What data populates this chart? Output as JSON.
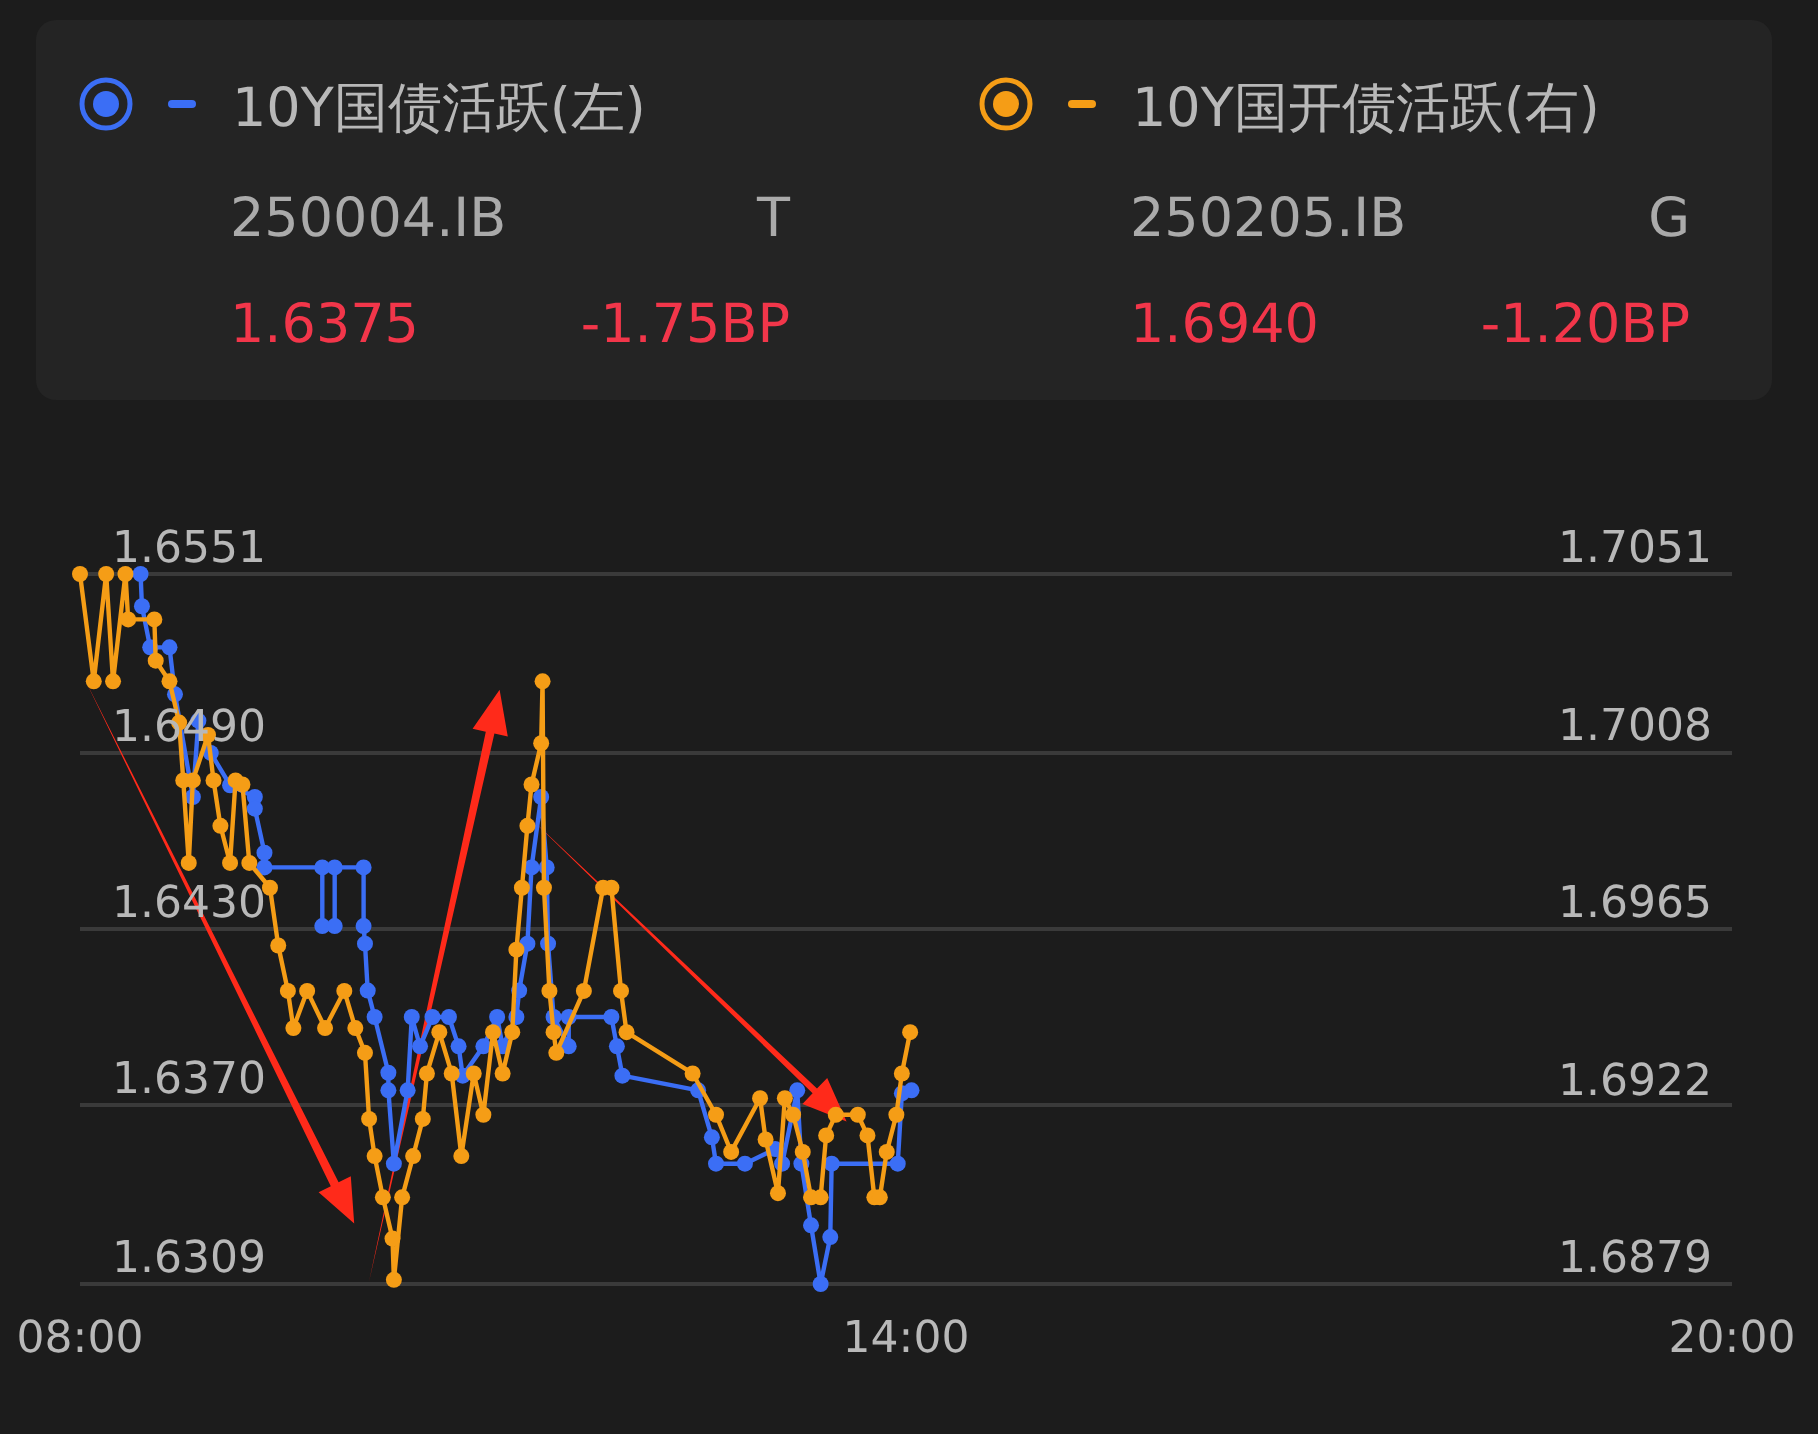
{
  "chart_data": {
    "type": "line",
    "series": [
      {
        "name": "10Y国债活跃(左)",
        "color": "#3b6ef5",
        "axis": "y",
        "x": [
          8.44,
          8.45,
          8.51,
          8.65,
          8.69,
          8.82,
          8.86,
          8.95,
          9.09,
          9.27,
          9.27,
          9.34,
          9.34,
          9.76,
          9.76,
          9.85,
          9.85,
          10.06,
          10.06,
          10.07,
          10.09,
          10.14,
          10.24,
          10.24,
          10.28,
          10.38,
          10.41,
          10.47,
          10.56,
          10.68,
          10.75,
          10.78,
          10.93,
          11.03,
          11.07,
          11.17,
          11.19,
          11.25,
          11.28,
          11.35,
          11.39,
          11.4,
          11.44,
          11.55,
          11.55,
          11.86,
          11.9,
          11.94,
          12.49,
          12.59,
          12.62,
          12.83,
          13.05,
          13.1,
          13.21,
          13.24,
          13.31,
          13.38,
          13.45,
          13.46,
          13.94,
          13.97,
          14.04
        ],
        "values": [
          1.6551,
          1.654,
          1.6526,
          1.6526,
          1.651,
          1.6475,
          1.6501,
          1.649,
          1.6479,
          1.6475,
          1.6471,
          1.6456,
          1.6451,
          1.6451,
          1.6431,
          1.6431,
          1.6451,
          1.6451,
          1.6431,
          1.6425,
          1.6409,
          1.64,
          1.6381,
          1.6375,
          1.635,
          1.6375,
          1.64,
          1.639,
          1.64,
          1.64,
          1.639,
          1.638,
          1.639,
          1.64,
          1.639,
          1.64,
          1.6409,
          1.6425,
          1.6451,
          1.6475,
          1.6451,
          1.6425,
          1.64,
          1.639,
          1.64,
          1.64,
          1.639,
          1.638,
          1.6375,
          1.6359,
          1.635,
          1.635,
          1.6355,
          1.635,
          1.6375,
          1.635,
          1.6329,
          1.6309,
          1.6325,
          1.635,
          1.635,
          1.6374,
          1.6375
        ]
      },
      {
        "name": "10Y国开债活跃(右)",
        "color": "#f59d16",
        "axis": "y2",
        "x": [
          8.0,
          8.1,
          8.19,
          8.24,
          8.33,
          8.35,
          8.54,
          8.55,
          8.65,
          8.72,
          8.75,
          8.79,
          8.82,
          8.93,
          8.97,
          9.02,
          9.09,
          9.13,
          9.18,
          9.23,
          9.38,
          9.44,
          9.51,
          9.55,
          9.65,
          9.78,
          9.92,
          10.0,
          10.07,
          10.1,
          10.14,
          10.2,
          10.27,
          10.28,
          10.34,
          10.42,
          10.49,
          10.52,
          10.61,
          10.7,
          10.77,
          10.86,
          10.93,
          11.0,
          11.07,
          11.14,
          11.17,
          11.21,
          11.25,
          11.28,
          11.35,
          11.36,
          11.37,
          11.41,
          11.44,
          11.46,
          11.66,
          11.8,
          11.86,
          11.93,
          11.97,
          12.45,
          12.62,
          12.73,
          12.94,
          12.98,
          13.07,
          13.12,
          13.18,
          13.25,
          13.31,
          13.38,
          13.42,
          13.49,
          13.65,
          13.72,
          13.77,
          13.81,
          13.86,
          13.93,
          13.97,
          14.03
        ],
        "values": [
          1.7051,
          1.7025,
          1.7051,
          1.7025,
          1.7051,
          1.704,
          1.704,
          1.703,
          1.7025,
          1.7015,
          1.7001,
          1.6981,
          1.7001,
          1.7012,
          1.7001,
          1.699,
          1.6981,
          1.7001,
          1.7,
          1.6981,
          1.6975,
          1.6961,
          1.695,
          1.6941,
          1.695,
          1.6941,
          1.695,
          1.6941,
          1.6935,
          1.6919,
          1.691,
          1.69,
          1.689,
          1.688,
          1.69,
          1.691,
          1.6919,
          1.693,
          1.694,
          1.693,
          1.691,
          1.693,
          1.692,
          1.694,
          1.693,
          1.694,
          1.696,
          1.6975,
          1.699,
          1.7,
          1.701,
          1.7025,
          1.6975,
          1.695,
          1.694,
          1.6935,
          1.695,
          1.6975,
          1.6975,
          1.695,
          1.694,
          1.693,
          1.692,
          1.6911,
          1.6924,
          1.6914,
          1.6901,
          1.6924,
          1.692,
          1.6911,
          1.69,
          1.69,
          1.6915,
          1.692,
          1.692,
          1.6915,
          1.69,
          1.69,
          1.6911,
          1.692,
          1.693,
          1.694
        ]
      }
    ],
    "xlim": [
      8,
      20
    ],
    "xticks": [
      {
        "value": 8,
        "label": "08:00"
      },
      {
        "value": 14,
        "label": "14:00"
      },
      {
        "value": 20,
        "label": "20:00"
      }
    ],
    "ylim": [
      1.6309,
      1.6551
    ],
    "yticks": [
      1.6309,
      {
        "value": 1.637,
        "label": "1.6370"
      },
      {
        "value": 1.643,
        "label": "1.6430"
      },
      {
        "value": 1.649,
        "label": "1.6490"
      },
      1.6551
    ],
    "y2lim": [
      1.6879,
      1.7051
    ],
    "y2ticks": [
      1.6879,
      1.6922,
      1.6965,
      1.7008,
      1.7051
    ],
    "grid": "y",
    "legend": "top",
    "marker": "circle",
    "line_style": "solid",
    "annotations": [
      "250004.IB",
      "T",
      "1.6375",
      "-1.75BP",
      "250205.IB",
      "G",
      "1.6940",
      "-1.20BP"
    ]
  }
}
